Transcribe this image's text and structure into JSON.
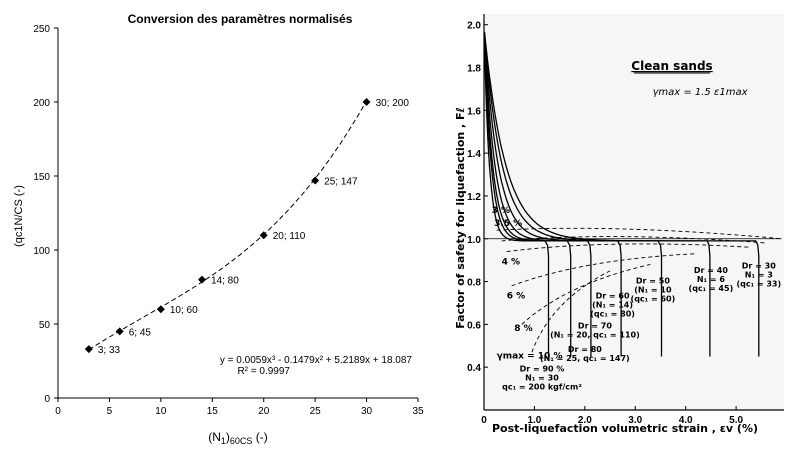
{
  "chart_data": [
    {
      "type": "scatter",
      "title": "Conversion des paramètres normalisés",
      "xlabel": "(N1)60CS (-)",
      "xlabel_parts": {
        "base": "(N",
        "sub1": "1",
        "mid": ")",
        "sub2": "60CS",
        "tail": " (-)"
      },
      "ylabel": "(qc1N/CS (-)",
      "xlim": [
        0,
        35
      ],
      "ylim": [
        0,
        250
      ],
      "xticks": [
        "0",
        "5",
        "10",
        "15",
        "20",
        "25",
        "30",
        "35"
      ],
      "yticks": [
        "0",
        "50",
        "100",
        "150",
        "200",
        "250"
      ],
      "grid": false,
      "points": [
        {
          "x": 3,
          "y": 33,
          "label": "3; 33"
        },
        {
          "x": 6,
          "y": 45,
          "label": "6; 45"
        },
        {
          "x": 10,
          "y": 60,
          "label": "10; 60"
        },
        {
          "x": 14,
          "y": 80,
          "label": "14; 80"
        },
        {
          "x": 20,
          "y": 110,
          "label": "20; 110"
        },
        {
          "x": 25,
          "y": 147,
          "label": "25; 147"
        },
        {
          "x": 30,
          "y": 200,
          "label": "30; 200"
        }
      ],
      "trendline": {
        "equation": "y = 0.0059x³ - 0.1479x² + 5.2189x + 18.087",
        "r2": "R² = 0.9997",
        "coefficients": [
          0.0059,
          -0.1479,
          5.2189,
          18.087
        ],
        "x_range": [
          3,
          30
        ],
        "style": "dashed"
      }
    },
    {
      "type": "line",
      "title": "Clean sands",
      "subtitle": "γmax = 1.5 ε1max",
      "xlabel": "Post-liquefaction volumetric strain , εv (%)",
      "ylabel": "Factor of safety for liquefaction , Fℓ",
      "xlim": [
        0,
        6
      ],
      "ylim": [
        0.2,
        2.05
      ],
      "xticks": [
        "0",
        "1.0",
        "2.0",
        "3.0",
        "4.0",
        "5.0"
      ],
      "yticks": [
        "0.4",
        "0.6",
        "0.8",
        "1.0",
        "1.2",
        "1.4",
        "1.6",
        "1.8",
        "2.0"
      ],
      "grid": false,
      "series": [
        {
          "name": "Dr = 90 %",
          "asymptote": 1.28,
          "k": 6.0
        },
        {
          "name": "Dr = 80 %",
          "asymptote": 1.72,
          "k": 4.5
        },
        {
          "name": "Dr = 70 %",
          "asymptote": 2.12,
          "k": 3.8
        },
        {
          "name": "Dr = 60 %",
          "asymptote": 2.72,
          "k": 3.0
        },
        {
          "name": "Dr = 50 %",
          "asymptote": 3.52,
          "k": 2.3
        },
        {
          "name": "Dr = 40 %",
          "asymptote": 4.48,
          "k": 1.8
        },
        {
          "name": "Dr = 30 %",
          "asymptote": 5.45,
          "k": 1.5
        }
      ],
      "gamma_lines": [
        "3 %",
        "3.5 %",
        "4 %",
        "6 %",
        "8 %",
        "γmax = 10 %"
      ],
      "annotations": [
        [
          "Dr = 30",
          "N₁ = 3",
          "(qc₁ = 33)"
        ],
        [
          "Dr = 40",
          "N₁ = 6",
          "(qc₁ = 45)"
        ],
        [
          "Dr = 50",
          "(N₁ = 10",
          "(qc₁ = 60)"
        ],
        [
          "Dr = 60",
          "(N₁ = 14)",
          "(qc₁ = 80)"
        ],
        [
          "Dr = 70",
          "(N₁ = 20, qc₁ = 110)"
        ],
        [
          "Dr = 80",
          "(N₁ = 25, qc₁ = 147)"
        ],
        [
          "Dr = 90 %",
          "N₁ = 30",
          "qc₁ = 200 kgf/cm²"
        ]
      ]
    }
  ]
}
